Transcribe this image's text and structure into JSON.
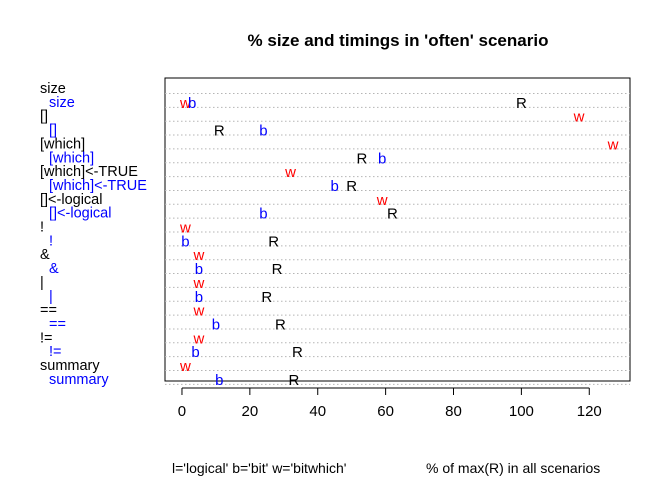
{
  "chart_data": {
    "type": "scatter",
    "title": "% size and timings in 'often' scenario",
    "xlim": [
      -5,
      132
    ],
    "x_ticks": [
      0,
      20,
      40,
      60,
      80,
      100,
      120
    ],
    "grid": "dotted horizontal lines at each row",
    "footer_left": "l='logical'  b='bit'  w='bitwhich'",
    "footer_right": "% of max(R) in all scenarios",
    "colors": {
      "R": "#000000",
      "b": "#0000ff",
      "w": "#ff0000"
    },
    "rows": [
      {
        "label": "size",
        "color": "#000000",
        "points": []
      },
      {
        "label": "size",
        "color": "#0000ff",
        "points": [
          {
            "mark": "w",
            "x": 1
          },
          {
            "mark": "b",
            "x": 3
          },
          {
            "mark": "R",
            "x": 100
          }
        ]
      },
      {
        "label": "[]",
        "color": "#000000",
        "points": [
          {
            "mark": "w",
            "x": 117
          }
        ]
      },
      {
        "label": "[]",
        "color": "#0000ff",
        "points": [
          {
            "mark": "b",
            "x": 24
          },
          {
            "mark": "R",
            "x": 11
          }
        ]
      },
      {
        "label": "[which]",
        "color": "#000000",
        "points": [
          {
            "mark": "w",
            "x": 127
          }
        ]
      },
      {
        "label": "[which]",
        "color": "#0000ff",
        "points": [
          {
            "mark": "b",
            "x": 59
          },
          {
            "mark": "R",
            "x": 53
          }
        ]
      },
      {
        "label": "[which]<-TRUE",
        "color": "#000000",
        "points": [
          {
            "mark": "w",
            "x": 32
          }
        ]
      },
      {
        "label": "[which]<-TRUE",
        "color": "#0000ff",
        "points": [
          {
            "mark": "b",
            "x": 45
          },
          {
            "mark": "R",
            "x": 50
          }
        ]
      },
      {
        "label": "[]<-logical",
        "color": "#000000",
        "points": [
          {
            "mark": "w",
            "x": 59
          }
        ]
      },
      {
        "label": "[]<-logical",
        "color": "#0000ff",
        "points": [
          {
            "mark": "b",
            "x": 24
          },
          {
            "mark": "R",
            "x": 62
          }
        ]
      },
      {
        "label": "!",
        "color": "#000000",
        "points": [
          {
            "mark": "w",
            "x": 1
          }
        ]
      },
      {
        "label": "!",
        "color": "#0000ff",
        "points": [
          {
            "mark": "b",
            "x": 1
          },
          {
            "mark": "R",
            "x": 27
          }
        ]
      },
      {
        "label": "&",
        "color": "#000000",
        "points": [
          {
            "mark": "w",
            "x": 5
          }
        ]
      },
      {
        "label": "&",
        "color": "#0000ff",
        "points": [
          {
            "mark": "b",
            "x": 5
          },
          {
            "mark": "R",
            "x": 28
          }
        ]
      },
      {
        "label": "|",
        "color": "#000000",
        "points": [
          {
            "mark": "w",
            "x": 5
          }
        ]
      },
      {
        "label": "|",
        "color": "#0000ff",
        "points": [
          {
            "mark": "b",
            "x": 5
          },
          {
            "mark": "R",
            "x": 25
          }
        ]
      },
      {
        "label": "==",
        "color": "#000000",
        "points": [
          {
            "mark": "w",
            "x": 5
          }
        ]
      },
      {
        "label": "==",
        "color": "#0000ff",
        "points": [
          {
            "mark": "b",
            "x": 10
          },
          {
            "mark": "R",
            "x": 29
          }
        ]
      },
      {
        "label": "!=",
        "color": "#000000",
        "points": [
          {
            "mark": "w",
            "x": 5
          }
        ]
      },
      {
        "label": "!=",
        "color": "#0000ff",
        "points": [
          {
            "mark": "b",
            "x": 4
          },
          {
            "mark": "R",
            "x": 34
          }
        ]
      },
      {
        "label": "summary",
        "color": "#000000",
        "points": [
          {
            "mark": "w",
            "x": 1
          }
        ]
      },
      {
        "label": "summary",
        "color": "#0000ff",
        "points": [
          {
            "mark": "b",
            "x": 11
          },
          {
            "mark": "R",
            "x": 33
          }
        ]
      }
    ]
  }
}
